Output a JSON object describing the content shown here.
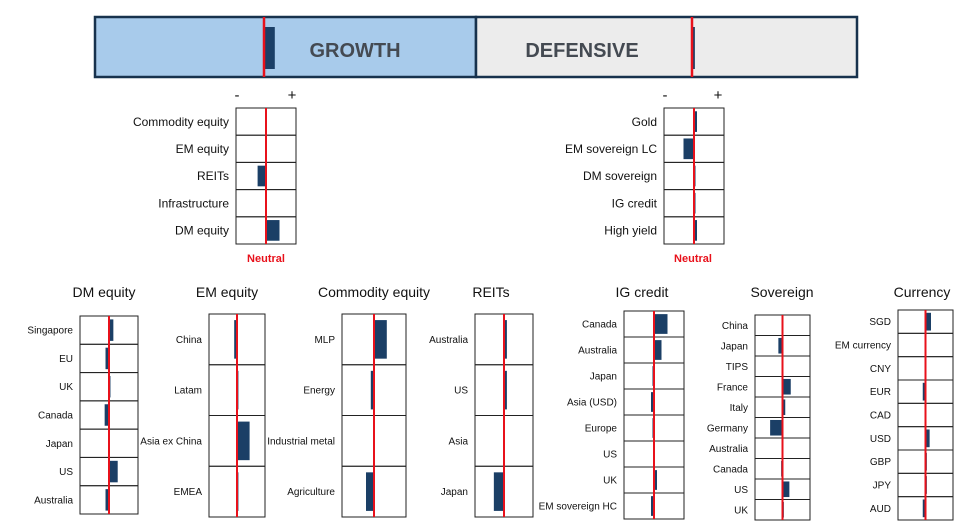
{
  "colors": {
    "growth_fill": "#a8cbeb",
    "defensive_fill": "#ececec",
    "border": "#17324d",
    "bar": "#1b3f66",
    "neutral_line": "#e8111b",
    "cell_border": "#222222"
  },
  "banner": {
    "growth_label": "GROWTH",
    "defensive_label": "DEFENSIVE",
    "growth_tilt": 0.45,
    "defensive_tilt": 0.12
  },
  "labels": {
    "minus": "-",
    "plus": "+",
    "neutral": "Neutral"
  },
  "chart_data": [
    {
      "type": "bar",
      "group": "growth",
      "categories": [
        "Commodity equity",
        "EM equity",
        "REITs",
        "Infrastructure",
        "DM equity"
      ],
      "values": [
        0,
        0,
        -0.28,
        0,
        0.45
      ],
      "xlim": [
        -1,
        1
      ]
    },
    {
      "type": "bar",
      "group": "defensive",
      "categories": [
        "Gold",
        "EM sovereign LC",
        "DM sovereign",
        "IG credit",
        "High yield"
      ],
      "values": [
        0.1,
        -0.35,
        0.05,
        0.05,
        0.1
      ],
      "xlim": [
        -1,
        1
      ]
    },
    {
      "type": "bar",
      "title": "DM equity",
      "categories": [
        "Singapore",
        "EU",
        "UK",
        "Canada",
        "Japan",
        "US",
        "Australia"
      ],
      "values": [
        0.15,
        -0.12,
        0.05,
        -0.15,
        0,
        0.3,
        -0.12
      ],
      "xlim": [
        -1,
        1
      ]
    },
    {
      "type": "bar",
      "title": "EM equity",
      "categories": [
        "China",
        "Latam",
        "Asia ex China",
        "EMEA"
      ],
      "values": [
        -0.1,
        0.05,
        0.45,
        0.05
      ],
      "xlim": [
        -1,
        1
      ]
    },
    {
      "type": "bar",
      "title": "Commodity equity",
      "categories": [
        "MLP",
        "Energy",
        "Industrial metal",
        "Agriculture"
      ],
      "values": [
        0.4,
        -0.1,
        0,
        -0.25
      ],
      "xlim": [
        -1,
        1
      ]
    },
    {
      "type": "bar",
      "title": "REITs",
      "categories": [
        "Australia",
        "US",
        "Asia",
        "Japan"
      ],
      "values": [
        0.1,
        0.1,
        0,
        -0.35
      ],
      "xlim": [
        -1,
        1
      ]
    },
    {
      "type": "bar",
      "title": "IG credit",
      "categories": [
        "Canada",
        "Australia",
        "Japan",
        "Asia (USD)",
        "Europe",
        "US",
        "UK",
        "EM sovereign HC"
      ],
      "values": [
        0.45,
        0.25,
        -0.05,
        -0.1,
        -0.05,
        0,
        0.1,
        -0.1
      ],
      "xlim": [
        -1,
        1
      ]
    },
    {
      "type": "bar",
      "title": "Sovereign",
      "categories": [
        "China",
        "Japan",
        "TIPS",
        "France",
        "Italy",
        "Germany",
        "Australia",
        "Canada",
        "US",
        "UK"
      ],
      "values": [
        0,
        -0.15,
        0,
        0.3,
        0.1,
        -0.45,
        0,
        -0.05,
        0.25,
        0.05
      ],
      "xlim": [
        -1,
        1
      ]
    },
    {
      "type": "bar",
      "title": "Currency",
      "categories": [
        "SGD",
        "EM currency",
        "CNY",
        "EUR",
        "CAD",
        "USD",
        "GBP",
        "JPY",
        "AUD"
      ],
      "values": [
        0.2,
        0,
        0,
        -0.1,
        0,
        0.15,
        0.05,
        0.05,
        -0.1
      ],
      "xlim": [
        -1,
        1
      ]
    }
  ]
}
